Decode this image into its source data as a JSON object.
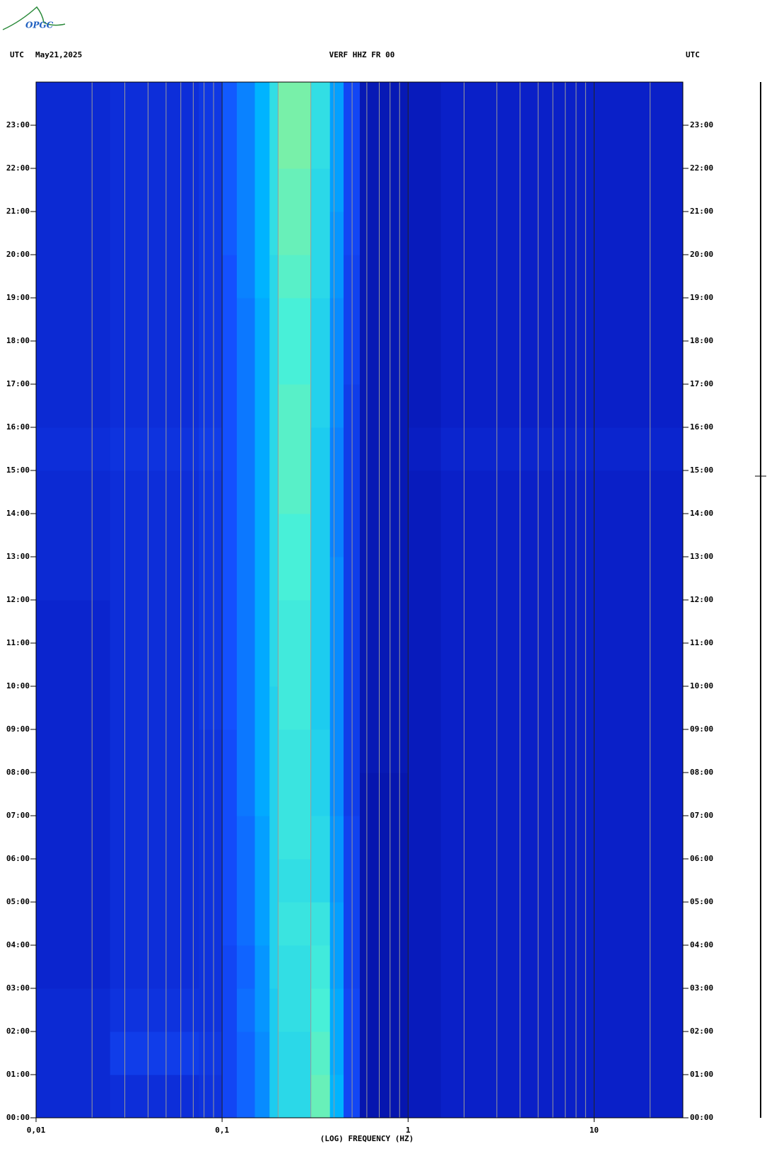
{
  "logo": "OPGC",
  "chart_data": {
    "type": "spectrogram",
    "title": "VERF HHZ FR 00",
    "date": "May21,2025",
    "left_timezone": "UTC",
    "right_timezone": "UTC",
    "xlabel": "(LOG) FREQUENCY (HZ)",
    "xscale": "log",
    "xlim": [
      0.01,
      30
    ],
    "xticks": [
      {
        "value": 0.01,
        "label": "0,01"
      },
      {
        "value": 0.1,
        "label": "0,1"
      },
      1,
      10
    ],
    "xminorticks": [
      0.02,
      0.03,
      0.04,
      0.05,
      0.06,
      0.07,
      0.08,
      0.09,
      0.2,
      0.3,
      0.4,
      0.5,
      0.6,
      0.7,
      0.8,
      0.9,
      2,
      3,
      4,
      5,
      6,
      7,
      8,
      9,
      20
    ],
    "ylim": [
      0,
      24
    ],
    "yticks": [
      {
        "value": 0,
        "label": "00:00"
      },
      {
        "value": 1,
        "label": "01:00"
      },
      {
        "value": 2,
        "label": "02:00"
      },
      {
        "value": 3,
        "label": "03:00"
      },
      {
        "value": 4,
        "label": "04:00"
      },
      {
        "value": 5,
        "label": "05:00"
      },
      {
        "value": 6,
        "label": "06:00"
      },
      {
        "value": 7,
        "label": "07:00"
      },
      {
        "value": 8,
        "label": "08:00"
      },
      {
        "value": 9,
        "label": "09:00"
      },
      {
        "value": 10,
        "label": "10:00"
      },
      {
        "value": 11,
        "label": "11:00"
      },
      {
        "value": 12,
        "label": "12:00"
      },
      {
        "value": 13,
        "label": "13:00"
      },
      {
        "value": 14,
        "label": "14:00"
      },
      {
        "value": 15,
        "label": "15:00"
      },
      {
        "value": 16,
        "label": "16:00"
      },
      {
        "value": 17,
        "label": "17:00"
      },
      {
        "value": 18,
        "label": "18:00"
      },
      {
        "value": 19,
        "label": "19:00"
      },
      {
        "value": 20,
        "label": "20:00"
      },
      {
        "value": 21,
        "label": "21:00"
      },
      {
        "value": 22,
        "label": "22:00"
      },
      {
        "value": 23,
        "label": "23:00"
      }
    ],
    "xedges": [
      0.01,
      0.025,
      0.075,
      0.1,
      0.12,
      0.15,
      0.18,
      0.2,
      0.3,
      0.38,
      0.45,
      0.55,
      1,
      1.5,
      30
    ],
    "colorscale": [
      "#00088a",
      "#0a20c8",
      "#1450ff",
      "#00b4ff",
      "#48f0d8",
      "#e8f03c"
    ],
    "grid_color": "#9a9a9a",
    "decade_color": "#222222",
    "z": [
      [
        1.2,
        1.3,
        1.4,
        1.8,
        2.2,
        2.6,
        3.4,
        3.6,
        4.2,
        3.0,
        1.8,
        0.6,
        0.8,
        1.0
      ],
      [
        1.2,
        1.6,
        1.5,
        1.8,
        2.2,
        2.6,
        3.4,
        3.6,
        4.1,
        2.9,
        1.8,
        0.6,
        0.8,
        1.0
      ],
      [
        1.2,
        1.4,
        1.4,
        1.8,
        2.3,
        2.7,
        3.4,
        3.7,
        4.0,
        2.9,
        1.8,
        0.6,
        0.8,
        1.0
      ],
      [
        1.1,
        1.3,
        1.4,
        1.8,
        2.2,
        2.7,
        3.5,
        3.7,
        3.9,
        2.8,
        1.7,
        0.6,
        0.8,
        1.0
      ],
      [
        1.1,
        1.3,
        1.4,
        1.9,
        2.3,
        2.8,
        3.5,
        3.8,
        3.8,
        2.8,
        1.7,
        0.6,
        0.8,
        1.0
      ],
      [
        1.1,
        1.3,
        1.4,
        1.9,
        2.3,
        2.8,
        3.5,
        3.7,
        3.6,
        2.7,
        1.7,
        0.6,
        0.8,
        1.0
      ],
      [
        1.1,
        1.3,
        1.4,
        1.9,
        2.3,
        2.8,
        3.5,
        3.8,
        3.6,
        2.7,
        1.7,
        0.6,
        0.8,
        1.0
      ],
      [
        1.1,
        1.3,
        1.4,
        1.9,
        2.4,
        2.9,
        3.5,
        3.8,
        3.5,
        2.6,
        1.6,
        0.6,
        0.8,
        1.0
      ],
      [
        1.1,
        1.3,
        1.4,
        1.9,
        2.4,
        2.9,
        3.5,
        3.8,
        3.5,
        2.6,
        1.6,
        0.7,
        0.8,
        1.0
      ],
      [
        1.1,
        1.3,
        1.5,
        2.0,
        2.4,
        2.9,
        3.5,
        3.9,
        3.4,
        2.6,
        1.6,
        0.7,
        0.8,
        1.0
      ],
      [
        1.1,
        1.3,
        1.5,
        2.0,
        2.4,
        2.9,
        3.6,
        3.9,
        3.4,
        2.6,
        1.6,
        0.7,
        0.8,
        1.0
      ],
      [
        1.1,
        1.3,
        1.5,
        2.0,
        2.4,
        2.9,
        3.6,
        3.9,
        3.4,
        2.6,
        1.6,
        0.7,
        0.8,
        1.0
      ],
      [
        1.2,
        1.3,
        1.5,
        2.0,
        2.4,
        2.9,
        3.6,
        4.0,
        3.4,
        2.6,
        1.6,
        0.7,
        0.8,
        1.0
      ],
      [
        1.2,
        1.3,
        1.5,
        2.0,
        2.4,
        2.9,
        3.6,
        4.0,
        3.4,
        2.5,
        1.6,
        0.7,
        0.8,
        1.0
      ],
      [
        1.2,
        1.3,
        1.5,
        2.0,
        2.4,
        2.9,
        3.6,
        4.1,
        3.4,
        2.5,
        1.6,
        0.7,
        0.8,
        1.0
      ],
      [
        1.3,
        1.4,
        1.6,
        2.0,
        2.4,
        2.9,
        3.6,
        4.1,
        3.4,
        2.5,
        1.6,
        0.7,
        0.9,
        1.1
      ],
      [
        1.2,
        1.3,
        1.5,
        2.0,
        2.4,
        2.9,
        3.6,
        4.1,
        3.5,
        2.6,
        1.6,
        0.7,
        0.8,
        1.0
      ],
      [
        1.2,
        1.3,
        1.5,
        2.0,
        2.4,
        2.9,
        3.6,
        4.0,
        3.5,
        2.6,
        1.7,
        0.7,
        0.8,
        1.0
      ],
      [
        1.2,
        1.3,
        1.5,
        2.0,
        2.4,
        2.9,
        3.6,
        4.0,
        3.5,
        2.6,
        1.7,
        0.7,
        0.8,
        1.0
      ],
      [
        1.2,
        1.3,
        1.5,
        2.0,
        2.5,
        3.0,
        3.6,
        4.1,
        3.6,
        2.7,
        1.7,
        0.7,
        0.8,
        1.0
      ],
      [
        1.2,
        1.3,
        1.5,
        2.1,
        2.5,
        3.0,
        3.7,
        4.2,
        3.6,
        2.7,
        1.8,
        0.7,
        0.8,
        1.0
      ],
      [
        1.2,
        1.3,
        1.5,
        2.1,
        2.5,
        3.0,
        3.7,
        4.2,
        3.6,
        2.8,
        1.8,
        0.7,
        0.8,
        1.0
      ],
      [
        1.2,
        1.3,
        1.5,
        2.1,
        2.5,
        3.0,
        3.7,
        4.3,
        3.7,
        2.8,
        1.8,
        0.7,
        0.8,
        1.0
      ],
      [
        1.2,
        1.3,
        1.5,
        2.1,
        2.5,
        3.0,
        3.7,
        4.3,
        3.7,
        2.8,
        1.8,
        0.7,
        0.8,
        1.0
      ]
    ]
  }
}
